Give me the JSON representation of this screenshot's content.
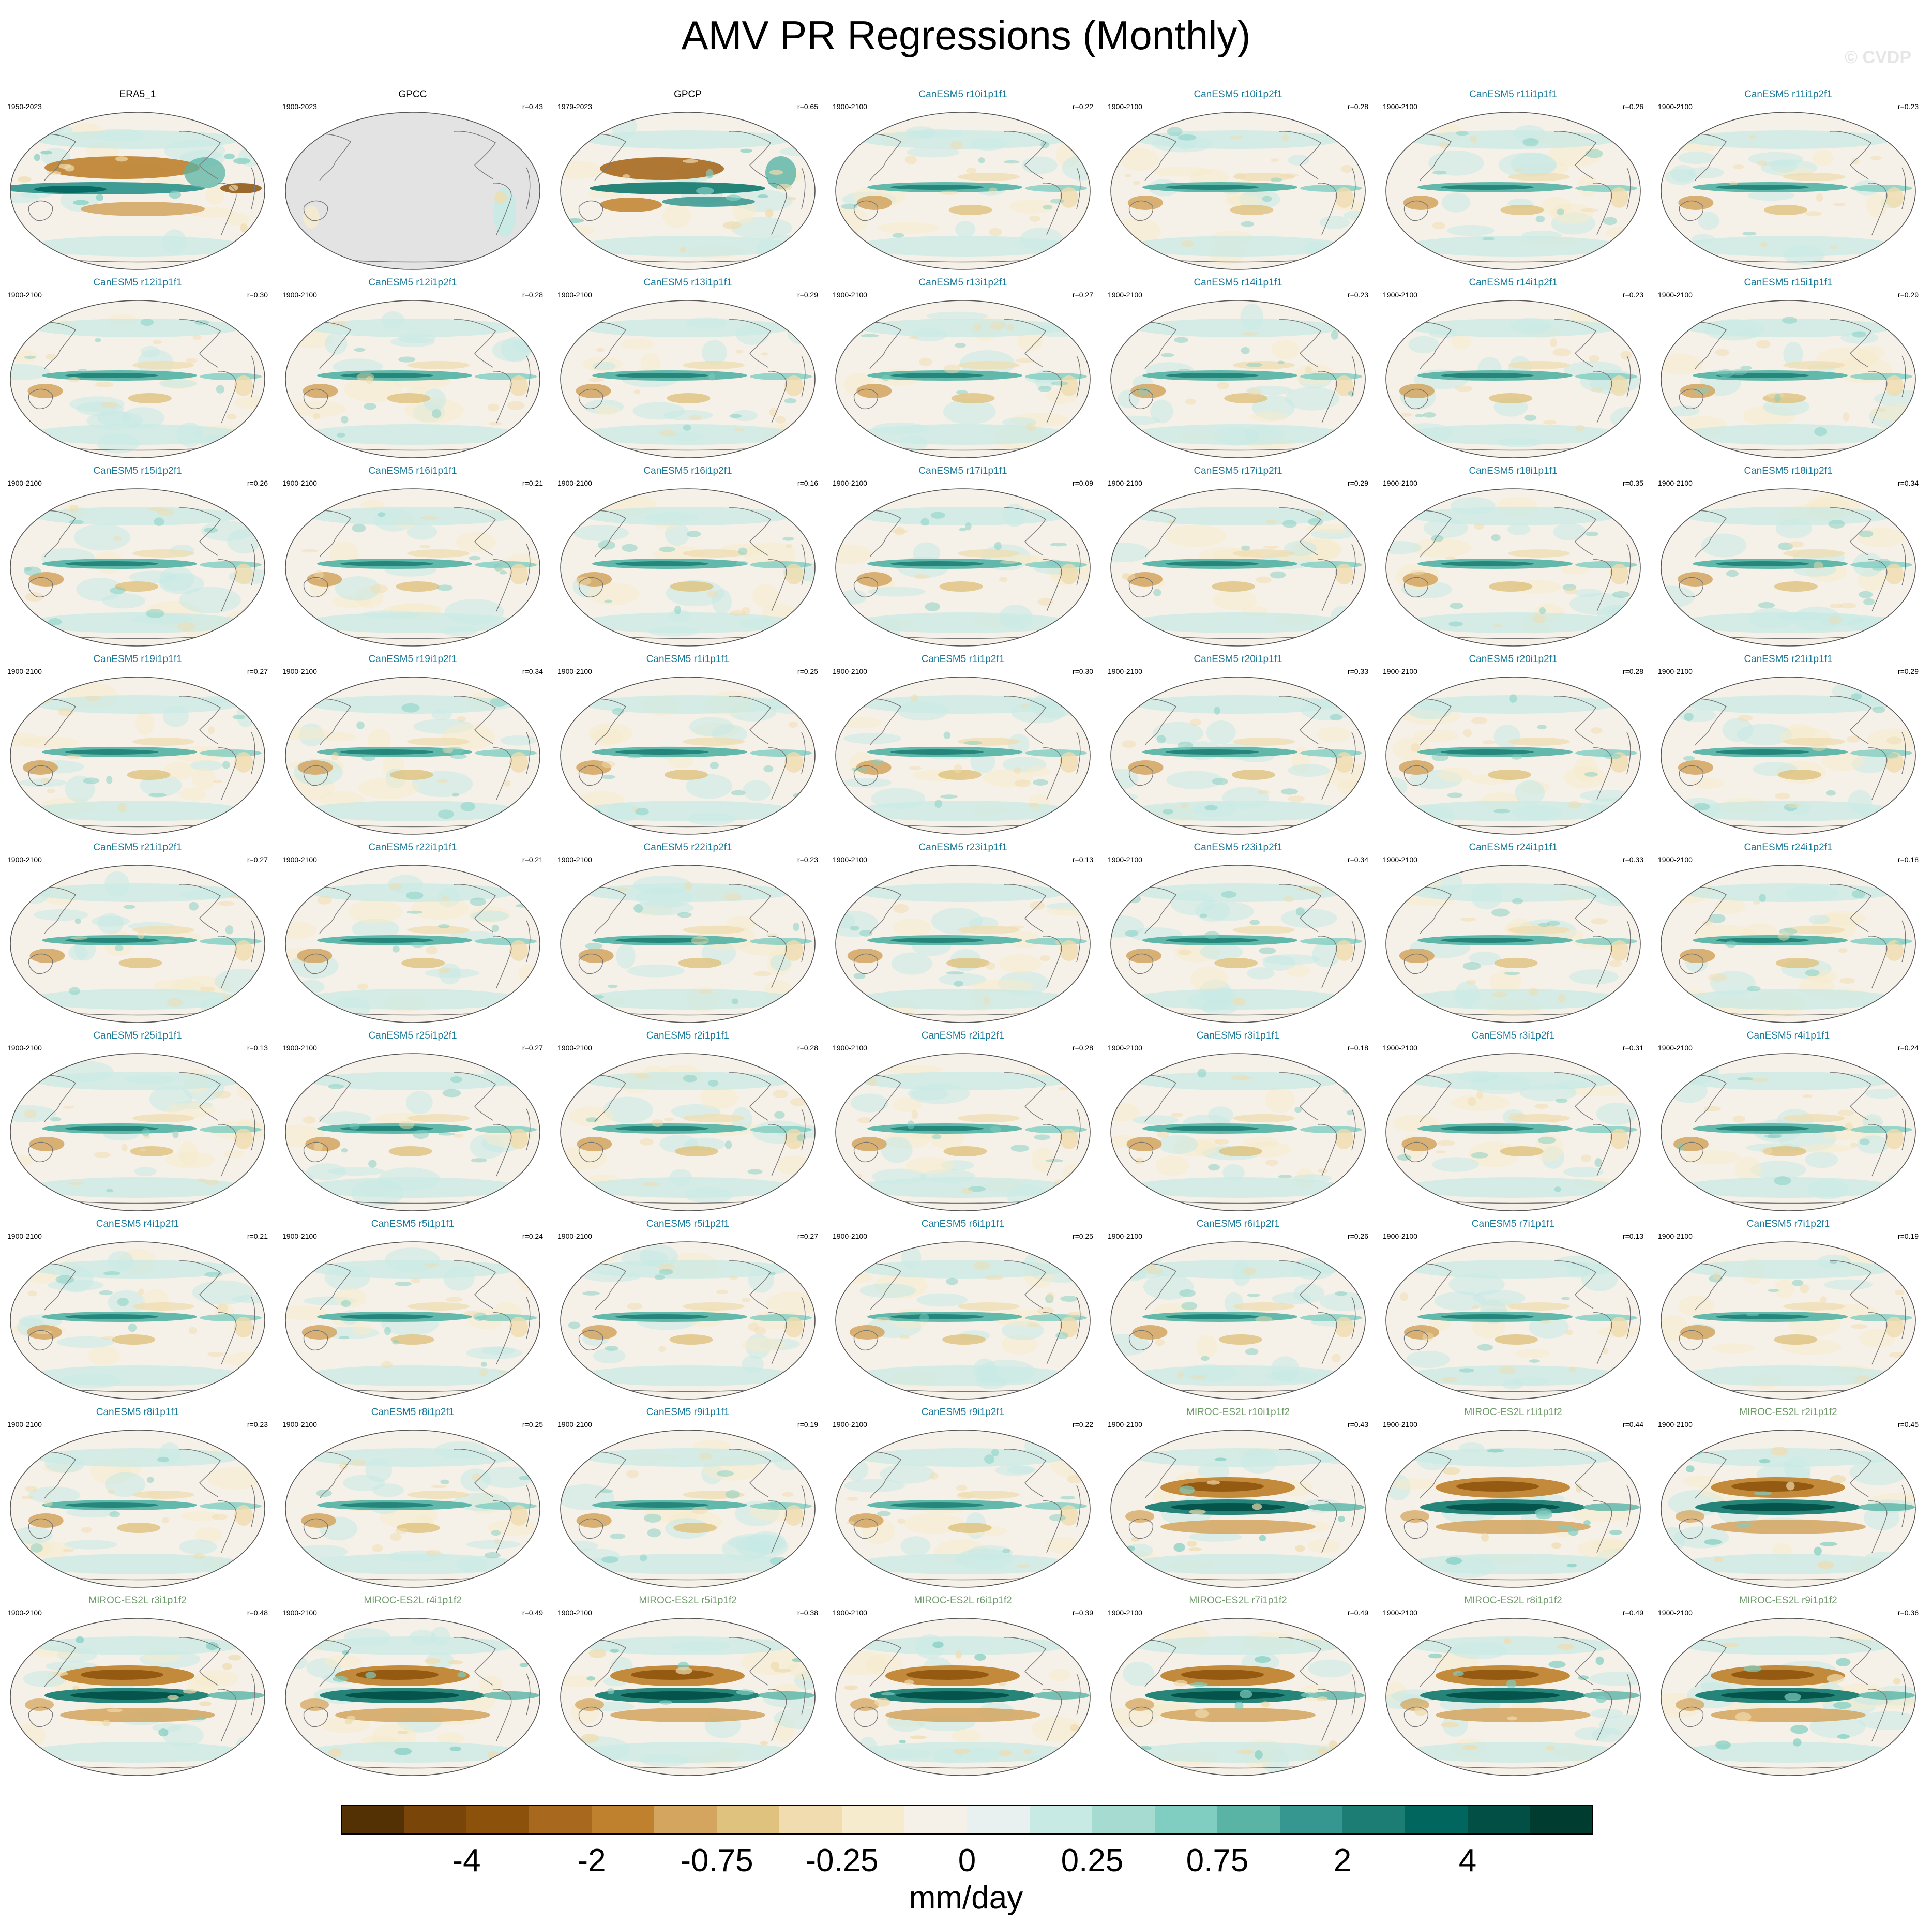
{
  "title": "AMV PR Regressions (Monthly)",
  "watermark": "© CVDP",
  "colors": {
    "title_obs": "#000000",
    "title_canesm5": "#1a7a9a",
    "title_miroc": "#6f9a6a",
    "land_missing": "#e3e3e3",
    "coast": "#777777"
  },
  "chart_data": {
    "type": "heatmap",
    "layout": {
      "columns": 7,
      "rows": 9
    },
    "panels": [
      {
        "name": "ERA5_1",
        "years": "1950-2023",
        "r": "",
        "group": "obs",
        "pattern": "era5"
      },
      {
        "name": "GPCC",
        "years": "1900-2023",
        "r": "r=0.43",
        "group": "obs",
        "pattern": "gpcc"
      },
      {
        "name": "GPCP",
        "years": "1979-2023",
        "r": "r=0.65",
        "group": "obs",
        "pattern": "gpcp"
      },
      {
        "name": "CanESM5 r10i1p1f1",
        "years": "1900-2100",
        "r": "r=0.22",
        "group": "canesm5"
      },
      {
        "name": "CanESM5 r10i1p2f1",
        "years": "1900-2100",
        "r": "r=0.28",
        "group": "canesm5"
      },
      {
        "name": "CanESM5 r11i1p1f1",
        "years": "1900-2100",
        "r": "r=0.26",
        "group": "canesm5"
      },
      {
        "name": "CanESM5 r11i1p2f1",
        "years": "1900-2100",
        "r": "r=0.23",
        "group": "canesm5"
      },
      {
        "name": "CanESM5 r12i1p1f1",
        "years": "1900-2100",
        "r": "r=0.30",
        "group": "canesm5"
      },
      {
        "name": "CanESM5 r12i1p2f1",
        "years": "1900-2100",
        "r": "r=0.28",
        "group": "canesm5"
      },
      {
        "name": "CanESM5 r13i1p1f1",
        "years": "1900-2100",
        "r": "r=0.29",
        "group": "canesm5"
      },
      {
        "name": "CanESM5 r13i1p2f1",
        "years": "1900-2100",
        "r": "r=0.27",
        "group": "canesm5"
      },
      {
        "name": "CanESM5 r14i1p1f1",
        "years": "1900-2100",
        "r": "r=0.23",
        "group": "canesm5"
      },
      {
        "name": "CanESM5 r14i1p2f1",
        "years": "1900-2100",
        "r": "r=0.23",
        "group": "canesm5"
      },
      {
        "name": "CanESM5 r15i1p1f1",
        "years": "1900-2100",
        "r": "r=0.29",
        "group": "canesm5"
      },
      {
        "name": "CanESM5 r15i1p2f1",
        "years": "1900-2100",
        "r": "r=0.26",
        "group": "canesm5"
      },
      {
        "name": "CanESM5 r16i1p1f1",
        "years": "1900-2100",
        "r": "r=0.21",
        "group": "canesm5"
      },
      {
        "name": "CanESM5 r16i1p2f1",
        "years": "1900-2100",
        "r": "r=0.16",
        "group": "canesm5"
      },
      {
        "name": "CanESM5 r17i1p1f1",
        "years": "1900-2100",
        "r": "r=0.09",
        "group": "canesm5"
      },
      {
        "name": "CanESM5 r17i1p2f1",
        "years": "1900-2100",
        "r": "r=0.29",
        "group": "canesm5"
      },
      {
        "name": "CanESM5 r18i1p1f1",
        "years": "1900-2100",
        "r": "r=0.35",
        "group": "canesm5"
      },
      {
        "name": "CanESM5 r18i1p2f1",
        "years": "1900-2100",
        "r": "r=0.34",
        "group": "canesm5"
      },
      {
        "name": "CanESM5 r19i1p1f1",
        "years": "1900-2100",
        "r": "r=0.27",
        "group": "canesm5"
      },
      {
        "name": "CanESM5 r19i1p2f1",
        "years": "1900-2100",
        "r": "r=0.34",
        "group": "canesm5"
      },
      {
        "name": "CanESM5 r1i1p1f1",
        "years": "1900-2100",
        "r": "r=0.25",
        "group": "canesm5"
      },
      {
        "name": "CanESM5 r1i1p2f1",
        "years": "1900-2100",
        "r": "r=0.30",
        "group": "canesm5"
      },
      {
        "name": "CanESM5 r20i1p1f1",
        "years": "1900-2100",
        "r": "r=0.33",
        "group": "canesm5"
      },
      {
        "name": "CanESM5 r20i1p2f1",
        "years": "1900-2100",
        "r": "r=0.28",
        "group": "canesm5"
      },
      {
        "name": "CanESM5 r21i1p1f1",
        "years": "1900-2100",
        "r": "r=0.29",
        "group": "canesm5"
      },
      {
        "name": "CanESM5 r21i1p2f1",
        "years": "1900-2100",
        "r": "r=0.27",
        "group": "canesm5"
      },
      {
        "name": "CanESM5 r22i1p1f1",
        "years": "1900-2100",
        "r": "r=0.21",
        "group": "canesm5"
      },
      {
        "name": "CanESM5 r22i1p2f1",
        "years": "1900-2100",
        "r": "r=0.23",
        "group": "canesm5"
      },
      {
        "name": "CanESM5 r23i1p1f1",
        "years": "1900-2100",
        "r": "r=0.13",
        "group": "canesm5"
      },
      {
        "name": "CanESM5 r23i1p2f1",
        "years": "1900-2100",
        "r": "r=0.34",
        "group": "canesm5"
      },
      {
        "name": "CanESM5 r24i1p1f1",
        "years": "1900-2100",
        "r": "r=0.33",
        "group": "canesm5"
      },
      {
        "name": "CanESM5 r24i1p2f1",
        "years": "1900-2100",
        "r": "r=0.18",
        "group": "canesm5"
      },
      {
        "name": "CanESM5 r25i1p1f1",
        "years": "1900-2100",
        "r": "r=0.13",
        "group": "canesm5"
      },
      {
        "name": "CanESM5 r25i1p2f1",
        "years": "1900-2100",
        "r": "r=0.27",
        "group": "canesm5"
      },
      {
        "name": "CanESM5 r2i1p1f1",
        "years": "1900-2100",
        "r": "r=0.28",
        "group": "canesm5"
      },
      {
        "name": "CanESM5 r2i1p2f1",
        "years": "1900-2100",
        "r": "r=0.28",
        "group": "canesm5"
      },
      {
        "name": "CanESM5 r3i1p1f1",
        "years": "1900-2100",
        "r": "r=0.18",
        "group": "canesm5"
      },
      {
        "name": "CanESM5 r3i1p2f1",
        "years": "1900-2100",
        "r": "r=0.31",
        "group": "canesm5"
      },
      {
        "name": "CanESM5 r4i1p1f1",
        "years": "1900-2100",
        "r": "r=0.24",
        "group": "canesm5"
      },
      {
        "name": "CanESM5 r4i1p2f1",
        "years": "1900-2100",
        "r": "r=0.21",
        "group": "canesm5"
      },
      {
        "name": "CanESM5 r5i1p1f1",
        "years": "1900-2100",
        "r": "r=0.24",
        "group": "canesm5"
      },
      {
        "name": "CanESM5 r5i1p2f1",
        "years": "1900-2100",
        "r": "r=0.27",
        "group": "canesm5"
      },
      {
        "name": "CanESM5 r6i1p1f1",
        "years": "1900-2100",
        "r": "r=0.25",
        "group": "canesm5"
      },
      {
        "name": "CanESM5 r6i1p2f1",
        "years": "1900-2100",
        "r": "r=0.26",
        "group": "canesm5"
      },
      {
        "name": "CanESM5 r7i1p1f1",
        "years": "1900-2100",
        "r": "r=0.13",
        "group": "canesm5"
      },
      {
        "name": "CanESM5 r7i1p2f1",
        "years": "1900-2100",
        "r": "r=0.19",
        "group": "canesm5"
      },
      {
        "name": "CanESM5 r8i1p1f1",
        "years": "1900-2100",
        "r": "r=0.23",
        "group": "canesm5"
      },
      {
        "name": "CanESM5 r8i1p2f1",
        "years": "1900-2100",
        "r": "r=0.25",
        "group": "canesm5"
      },
      {
        "name": "CanESM5 r9i1p1f1",
        "years": "1900-2100",
        "r": "r=0.19",
        "group": "canesm5"
      },
      {
        "name": "CanESM5 r9i1p2f1",
        "years": "1900-2100",
        "r": "r=0.22",
        "group": "canesm5"
      },
      {
        "name": "MIROC-ES2L r10i1p1f2",
        "years": "1900-2100",
        "r": "r=0.43",
        "group": "miroc"
      },
      {
        "name": "MIROC-ES2L r1i1p1f2",
        "years": "1900-2100",
        "r": "r=0.44",
        "group": "miroc"
      },
      {
        "name": "MIROC-ES2L r2i1p1f2",
        "years": "1900-2100",
        "r": "r=0.45",
        "group": "miroc"
      },
      {
        "name": "MIROC-ES2L r3i1p1f2",
        "years": "1900-2100",
        "r": "r=0.48",
        "group": "miroc"
      },
      {
        "name": "MIROC-ES2L r4i1p1f2",
        "years": "1900-2100",
        "r": "r=0.49",
        "group": "miroc"
      },
      {
        "name": "MIROC-ES2L r5i1p1f2",
        "years": "1900-2100",
        "r": "r=0.38",
        "group": "miroc"
      },
      {
        "name": "MIROC-ES2L r6i1p1f2",
        "years": "1900-2100",
        "r": "r=0.39",
        "group": "miroc"
      },
      {
        "name": "MIROC-ES2L r7i1p1f2",
        "years": "1900-2100",
        "r": "r=0.49",
        "group": "miroc"
      },
      {
        "name": "MIROC-ES2L r8i1p1f2",
        "years": "1900-2100",
        "r": "r=0.49",
        "group": "miroc"
      },
      {
        "name": "MIROC-ES2L r9i1p1f2",
        "years": "1900-2100",
        "r": "r=0.36",
        "group": "miroc"
      }
    ],
    "colorbar": {
      "label": "mm/day",
      "tick_labels": [
        "-4",
        "-2",
        "-0.75",
        "-0.25",
        "0",
        "0.25",
        "0.75",
        "2",
        "4"
      ],
      "colors": [
        "#543005",
        "#7a4508",
        "#8c510a",
        "#a8691f",
        "#bf812d",
        "#d4a55f",
        "#dfc27d",
        "#f0dcae",
        "#f6ebcc",
        "#f5f0e8",
        "#e8f1ef",
        "#c7eae5",
        "#a6dbd2",
        "#80cdc1",
        "#5ab4a6",
        "#35978f",
        "#1b7d73",
        "#01665e",
        "#024f46",
        "#003c30"
      ]
    }
  }
}
